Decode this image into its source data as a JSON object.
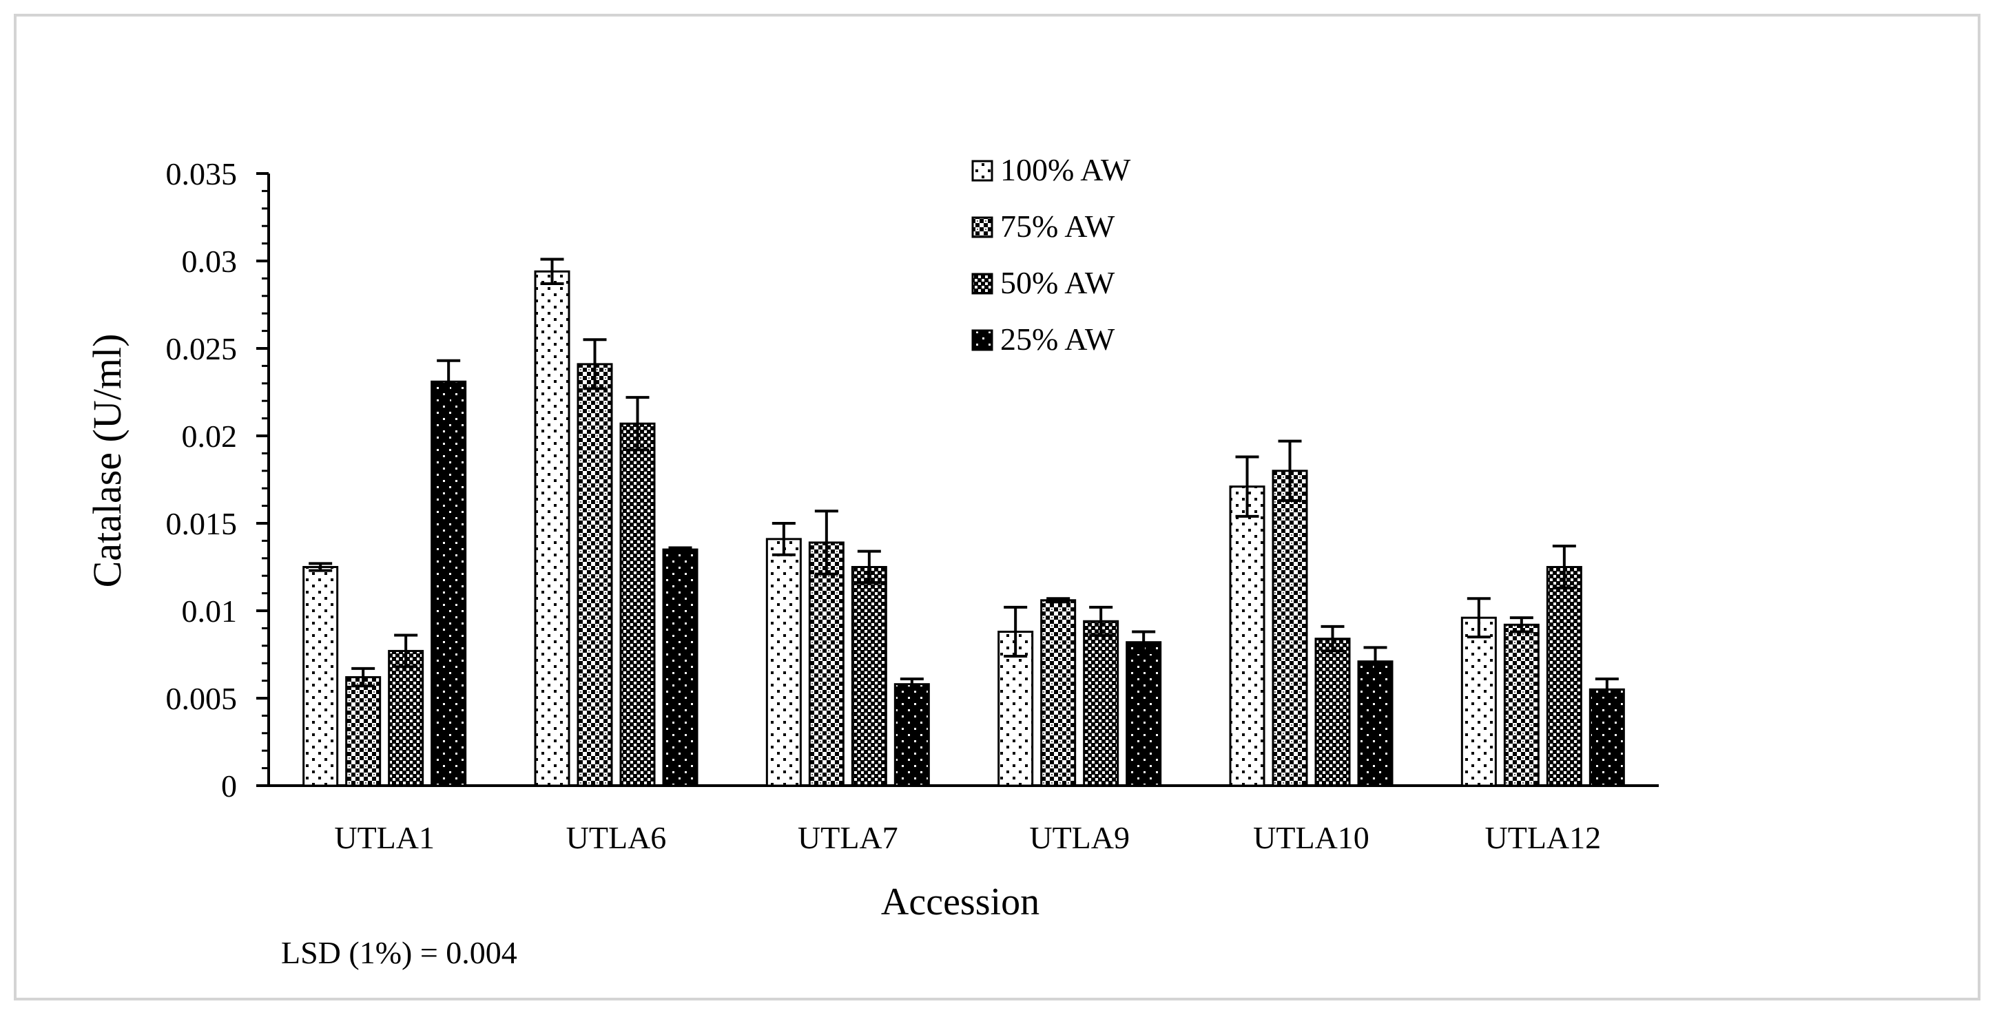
{
  "chart_data": {
    "type": "bar",
    "title": "",
    "xlabel": "Accession",
    "ylabel": "Catalase (U/ml)",
    "ylim": [
      0,
      0.035
    ],
    "yticks": [
      "0",
      "0.005",
      "0.01",
      "0.015",
      "0.02",
      "0.025",
      "0.03",
      "0.035"
    ],
    "categories": [
      "UTLA1",
      "UTLA6",
      "UTLA7",
      "UTLA9",
      "UTLA10",
      "UTLA12"
    ],
    "series": [
      {
        "name": "100% AW",
        "pattern": "dots-sparse",
        "values": [
          0.0125,
          0.0294,
          0.0141,
          0.0088,
          0.0171,
          0.0096
        ],
        "errors": [
          0.0002,
          0.0007,
          0.0009,
          0.0014,
          0.0017,
          0.0011
        ]
      },
      {
        "name": "75% AW",
        "pattern": "checker",
        "values": [
          0.0062,
          0.0241,
          0.0139,
          0.0106,
          0.018,
          0.0092
        ],
        "errors": [
          0.0005,
          0.0014,
          0.0018,
          0.0001,
          0.0017,
          0.0004
        ]
      },
      {
        "name": "50% AW",
        "pattern": "checker-dense",
        "values": [
          0.0077,
          0.0207,
          0.0125,
          0.0094,
          0.0084,
          0.0125
        ],
        "errors": [
          0.0009,
          0.0015,
          0.0009,
          0.0008,
          0.0007,
          0.0012
        ]
      },
      {
        "name": "25% AW",
        "pattern": "black-dots",
        "values": [
          0.0231,
          0.0135,
          0.0058,
          0.0082,
          0.0071,
          0.0055
        ],
        "errors": [
          0.0012,
          0.0001,
          0.0003,
          0.0006,
          0.0008,
          0.0006
        ]
      }
    ],
    "legend_position": "top-center",
    "note": "LSD (1%) = 0.004"
  },
  "colors": {
    "axis": "#000000",
    "bar_outline": "#000000",
    "bar_dark": "#000000",
    "frame": "#d4d4d4"
  }
}
